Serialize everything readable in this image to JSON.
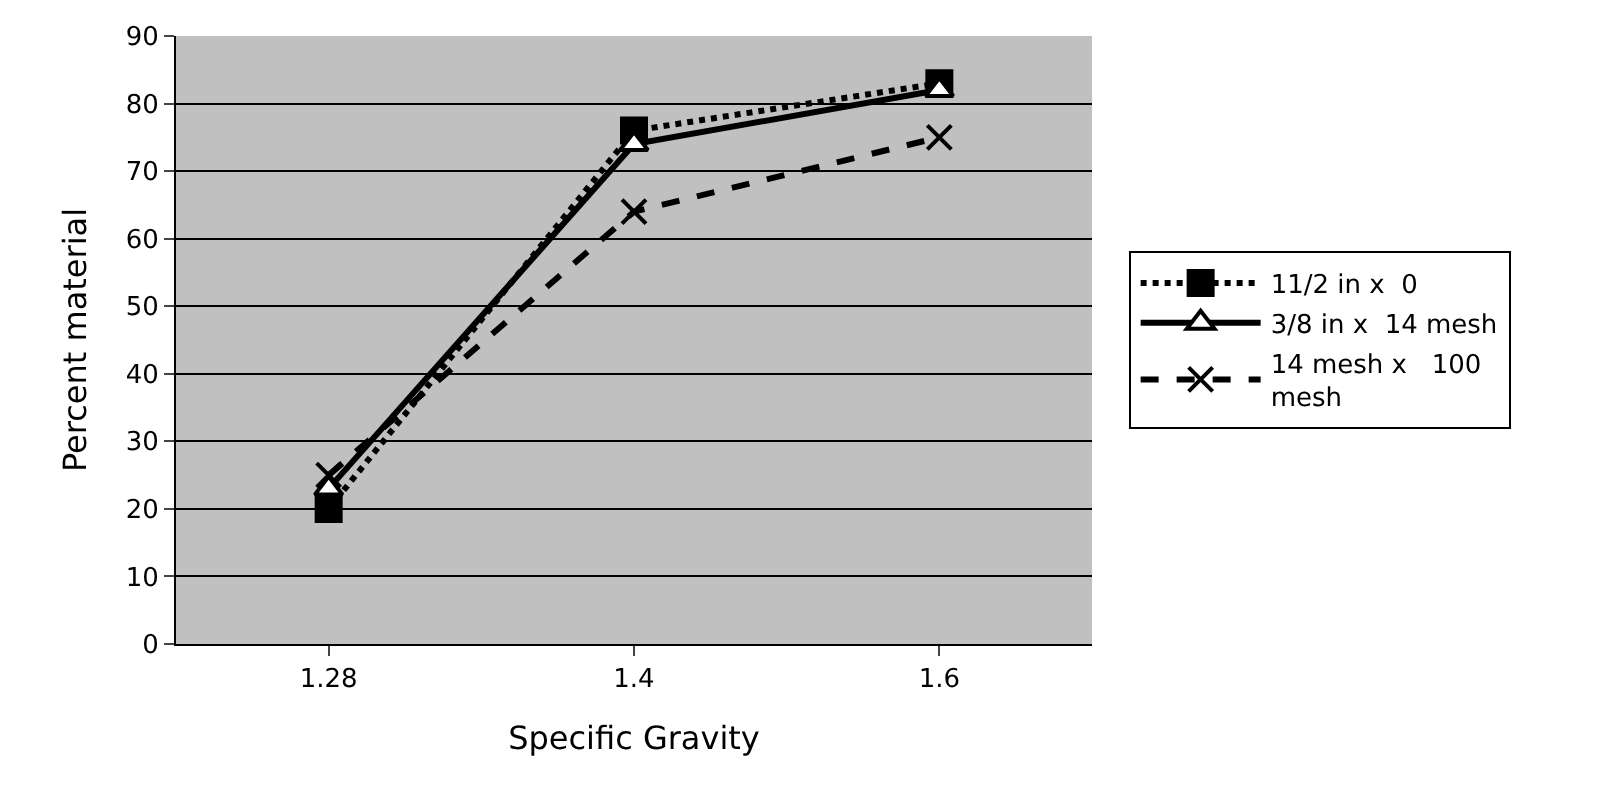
{
  "chart_data": {
    "type": "line",
    "xlabel": "Specific Gravity",
    "ylabel": "Percent material",
    "categories": [
      "1.28",
      "1.4",
      "1.6"
    ],
    "series": [
      {
        "name": "11/2 in x  0",
        "color": "#000000",
        "values": [
          20,
          76,
          83
        ],
        "marker": "square",
        "line_style": "dotted"
      },
      {
        "name": "3/8 in x  14 mesh",
        "color": "#000000",
        "values": [
          23,
          74,
          82
        ],
        "marker": "triangle",
        "line_style": "solid"
      },
      {
        "name": "14 mesh x   100 mesh",
        "color": "#000000",
        "values": [
          25,
          64,
          75
        ],
        "marker": "cross",
        "line_style": "dashed"
      }
    ],
    "ylim": [
      0,
      90
    ],
    "yticks": [
      0,
      10,
      20,
      30,
      40,
      50,
      60,
      70,
      80,
      90
    ],
    "grid": "y",
    "legend": "right"
  }
}
